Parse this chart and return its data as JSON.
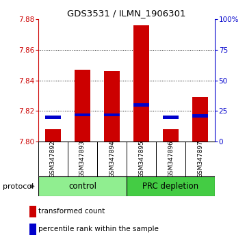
{
  "title": "GDS3531 / ILMN_1906301",
  "samples": [
    "GSM347892",
    "GSM347893",
    "GSM347894",
    "GSM347895",
    "GSM347896",
    "GSM347897"
  ],
  "transformed_counts": [
    7.808,
    7.847,
    7.846,
    7.876,
    7.808,
    7.829
  ],
  "percentile_ranks": [
    20,
    22,
    22,
    30,
    20,
    21
  ],
  "y_min": 7.8,
  "y_max": 7.88,
  "y_ticks": [
    7.8,
    7.82,
    7.84,
    7.86,
    7.88
  ],
  "right_y_ticks": [
    0,
    25,
    50,
    75,
    100
  ],
  "bar_color": "#CC0000",
  "percentile_color": "#0000CC",
  "control_color": "#90EE90",
  "prc_color": "#44CC44",
  "title_color": "#000000",
  "left_axis_color": "#CC0000",
  "right_axis_color": "#0000CC",
  "bar_width": 0.55,
  "background_color": "#ffffff",
  "plot_bg_color": "#ffffff",
  "sample_bg_color": "#cccccc",
  "grid_color": "#000000",
  "legend_items": [
    "transformed count",
    "percentile rank within the sample"
  ],
  "n_control": 3,
  "n_prc": 3
}
